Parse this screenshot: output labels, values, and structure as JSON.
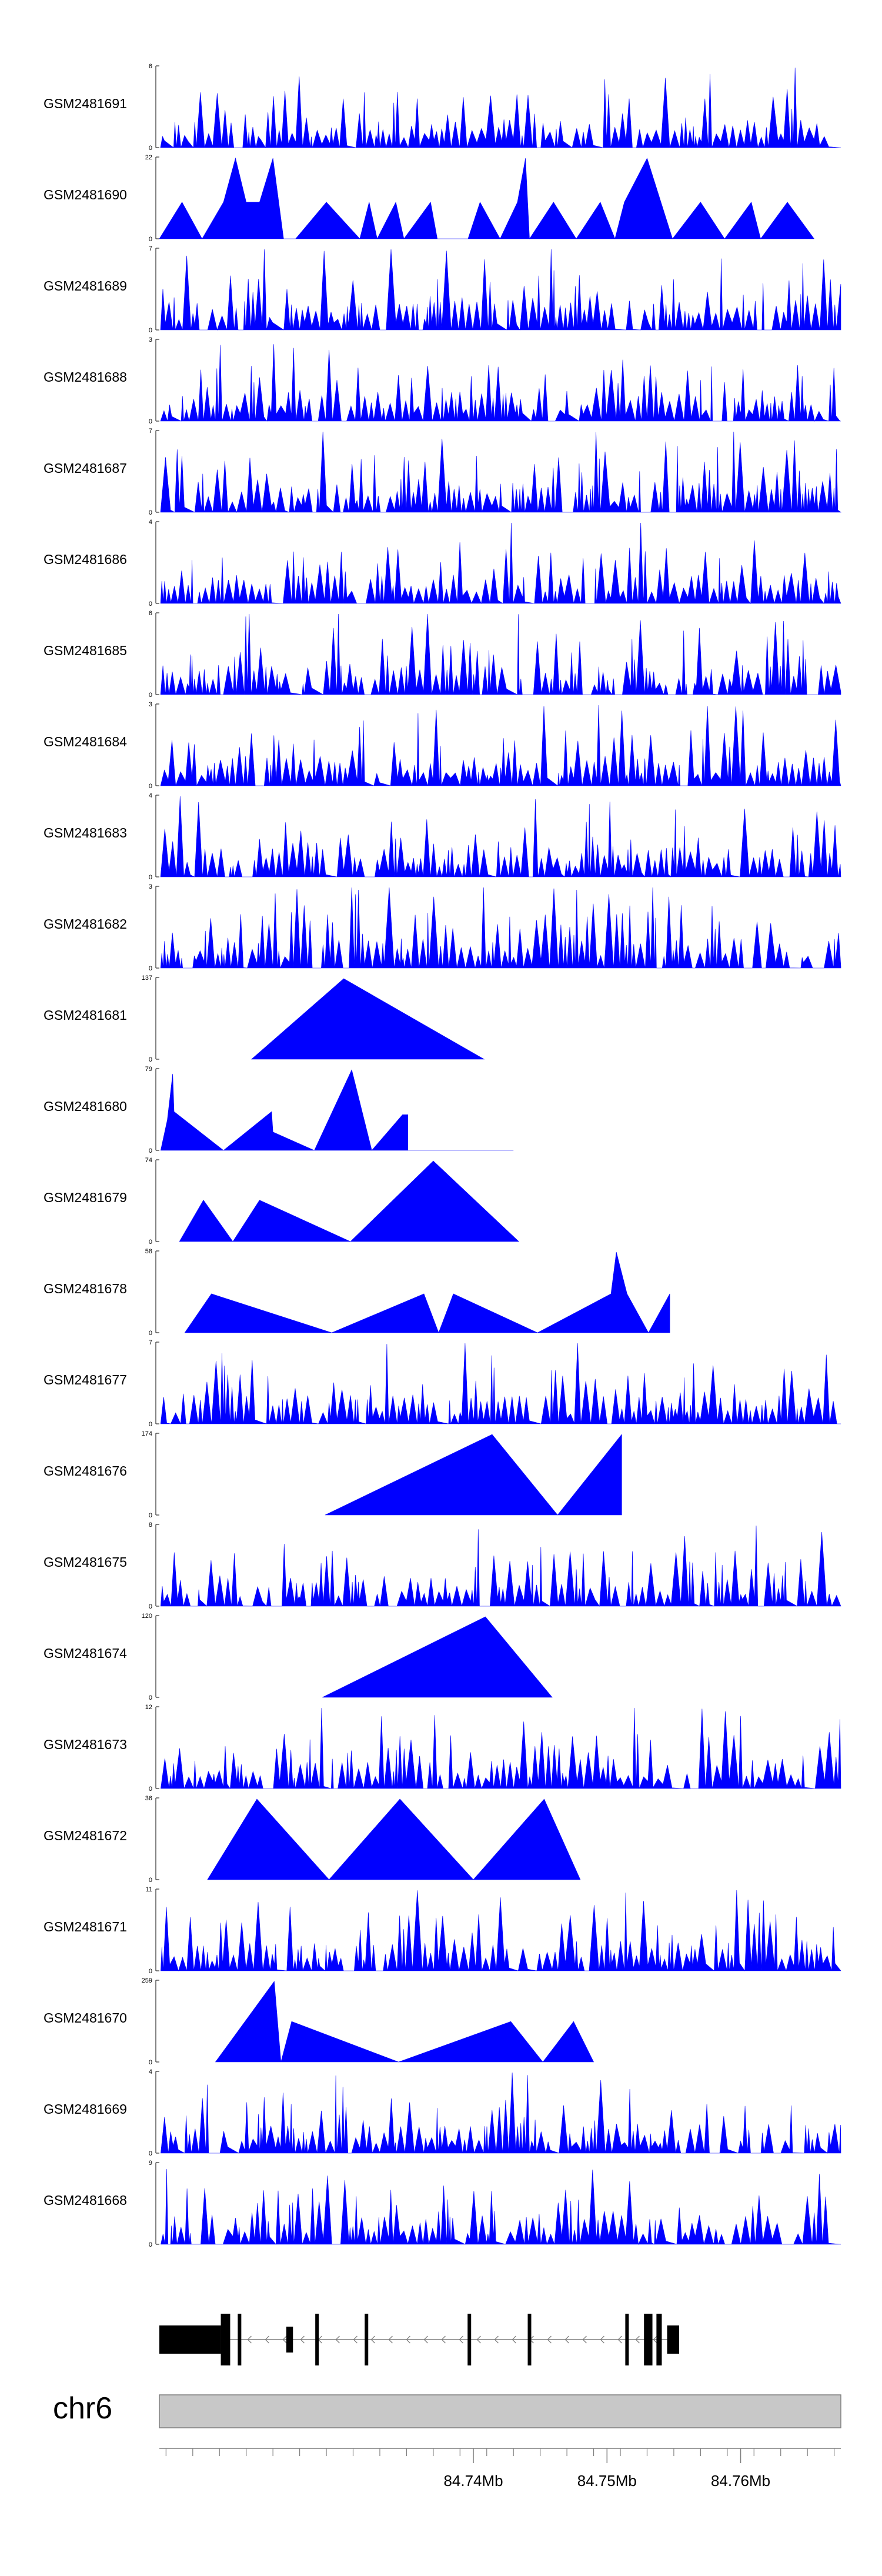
{
  "chart_data": {
    "type": "area",
    "title": "",
    "chromosome": "chr6",
    "x_range_mb": [
      84.7165,
      84.7675
    ],
    "x_ticks_mb": [
      84.74,
      84.75,
      84.76
    ],
    "x_tick_labels": [
      "84.74Mb",
      "84.75Mb",
      "84.76Mb"
    ],
    "fill_color": "#0000ff",
    "tracks": [
      {
        "name": "GSM2481691",
        "ymax_label": "6",
        "ymax": 6,
        "style": "dense",
        "seed": 11,
        "x": [],
        "y": []
      },
      {
        "name": "GSM2481690",
        "ymax_label": "22",
        "ymax": 22,
        "style": "sparse",
        "x": [
          84.7165,
          84.7182,
          84.7197,
          84.7213,
          84.7222,
          84.723,
          84.724,
          84.725,
          84.7258,
          84.7267,
          84.729,
          84.7315,
          84.7322,
          84.7328,
          84.7342,
          84.7348,
          84.7368,
          84.7373,
          84.7396,
          84.7405,
          84.742,
          84.7433,
          84.7439,
          84.7442,
          84.746,
          84.7477,
          84.7495,
          84.7506,
          84.7513,
          84.753,
          84.7549,
          84.757,
          84.7588,
          84.7608,
          84.7615,
          84.7635,
          84.7655
        ],
        "y": [
          0,
          10,
          0,
          10,
          22,
          10,
          10,
          22,
          0,
          0,
          10,
          0,
          10,
          0,
          10,
          0,
          10,
          0,
          0,
          10,
          0,
          10,
          22,
          0,
          10,
          0,
          10,
          0,
          10,
          22,
          0,
          10,
          0,
          10,
          0,
          10,
          0
        ]
      },
      {
        "name": "GSM2481689",
        "ymax_label": "7",
        "ymax": 7,
        "style": "dense",
        "seed": 23,
        "x": [],
        "y": []
      },
      {
        "name": "GSM2481688",
        "ymax_label": "3",
        "ymax": 3,
        "style": "dense",
        "seed": 37,
        "x": [],
        "y": []
      },
      {
        "name": "GSM2481687",
        "ymax_label": "7",
        "ymax": 7,
        "style": "dense",
        "seed": 41,
        "x": [],
        "y": []
      },
      {
        "name": "GSM2481686",
        "ymax_label": "4",
        "ymax": 4,
        "style": "dense",
        "seed": 53,
        "x": [],
        "y": []
      },
      {
        "name": "GSM2481685",
        "ymax_label": "6",
        "ymax": 6,
        "style": "dense",
        "seed": 67,
        "x": [],
        "y": []
      },
      {
        "name": "GSM2481684",
        "ymax_label": "3",
        "ymax": 3,
        "style": "dense",
        "seed": 71,
        "x": [],
        "y": []
      },
      {
        "name": "GSM2481683",
        "ymax_label": "4",
        "ymax": 4,
        "style": "dense",
        "seed": 83,
        "x": [],
        "y": []
      },
      {
        "name": "GSM2481682",
        "ymax_label": "3",
        "ymax": 3,
        "style": "dense",
        "seed": 97,
        "x": [],
        "y": []
      },
      {
        "name": "GSM2481681",
        "ymax_label": "137",
        "ymax": 137,
        "style": "sparse",
        "x": [
          84.7234,
          84.7303,
          84.7408
        ],
        "y": [
          0,
          137,
          0
        ]
      },
      {
        "name": "GSM2481680",
        "ymax_label": "79",
        "ymax": 79,
        "style": "sparse",
        "x": [
          84.7166,
          84.7171,
          84.7175,
          84.7176,
          84.7213,
          84.7249,
          84.7249,
          84.725,
          84.7281,
          84.7309,
          84.7324,
          84.7347,
          84.7351,
          84.7351,
          84.743
        ],
        "y": [
          0,
          30,
          75,
          38,
          0,
          38,
          38,
          18,
          0,
          79,
          0,
          35,
          35,
          0,
          0
        ]
      },
      {
        "name": "GSM2481679",
        "ymax_label": "74",
        "ymax": 74,
        "style": "sparse",
        "x": [
          84.718,
          84.7198,
          84.722,
          84.724,
          84.7308,
          84.737,
          84.7434
        ],
        "y": [
          0,
          38,
          0,
          38,
          0,
          74,
          0
        ]
      },
      {
        "name": "GSM2481678",
        "ymax_label": "58",
        "ymax": 58,
        "style": "sparse",
        "x": [
          84.7184,
          84.7204,
          84.7294,
          84.7363,
          84.7374,
          84.7385,
          84.7448,
          84.7503,
          84.7507,
          84.7515,
          84.7531,
          84.7547
        ],
        "y": [
          0,
          28,
          0,
          28,
          0,
          28,
          0,
          28,
          58,
          28,
          0,
          28
        ]
      },
      {
        "name": "GSM2481677",
        "ymax_label": "7",
        "ymax": 7,
        "style": "dense",
        "seed": 113,
        "x": [],
        "y": []
      },
      {
        "name": "GSM2481676",
        "ymax_label": "174",
        "ymax": 174,
        "style": "sparse",
        "x": [
          84.7289,
          84.7414,
          84.7463,
          84.7511
        ],
        "y": [
          0,
          174,
          0,
          174
        ]
      },
      {
        "name": "GSM2481675",
        "ymax_label": "8",
        "ymax": 8,
        "style": "dense",
        "seed": 131,
        "x": [],
        "y": []
      },
      {
        "name": "GSM2481674",
        "ymax_label": "120",
        "ymax": 120,
        "style": "sparse",
        "x": [
          84.7287,
          84.7409,
          84.7459
        ],
        "y": [
          0,
          120,
          0
        ]
      },
      {
        "name": "GSM2481673",
        "ymax_label": "12",
        "ymax": 12,
        "style": "dense",
        "seed": 149,
        "x": [],
        "y": []
      },
      {
        "name": "GSM2481672",
        "ymax_label": "36",
        "ymax": 36,
        "style": "sparse",
        "x": [
          84.7201,
          84.7238,
          84.7292,
          84.7345,
          84.74,
          84.7453,
          84.748
        ],
        "y": [
          0,
          36,
          0,
          36,
          0,
          36,
          0
        ]
      },
      {
        "name": "GSM2481671",
        "ymax_label": "11",
        "ymax": 11,
        "style": "dense",
        "seed": 163,
        "x": [],
        "y": []
      },
      {
        "name": "GSM2481670",
        "ymax_label": "259",
        "ymax": 259,
        "style": "sparse",
        "x": [
          84.7207,
          84.7251,
          84.7256,
          84.7264,
          84.7344,
          84.7428,
          84.7452,
          84.7475,
          84.749
        ],
        "y": [
          0,
          259,
          0,
          130,
          0,
          130,
          0,
          130,
          0
        ]
      },
      {
        "name": "GSM2481669",
        "ymax_label": "4",
        "ymax": 4,
        "style": "dense",
        "seed": 181,
        "x": [],
        "y": []
      },
      {
        "name": "GSM2481668",
        "ymax_label": "9",
        "ymax": 9,
        "style": "dense",
        "seed": 199,
        "x": [],
        "y": []
      }
    ],
    "gene_model": {
      "strand": "-",
      "thick_exons_mb": [
        [
          84.7165,
          84.7211
        ],
        [
          84.7211,
          84.7218
        ],
        [
          84.726,
          84.7265
        ],
        [
          84.7545,
          84.7554
        ]
      ],
      "thin_exons_mb": [
        84.7225,
        84.7283,
        84.732,
        84.7397,
        84.7442,
        84.7515,
        84.7529
      ],
      "medium_exons_mb": [
        [
          84.7528,
          84.7534
        ],
        [
          84.7537,
          84.7541
        ]
      ]
    }
  }
}
